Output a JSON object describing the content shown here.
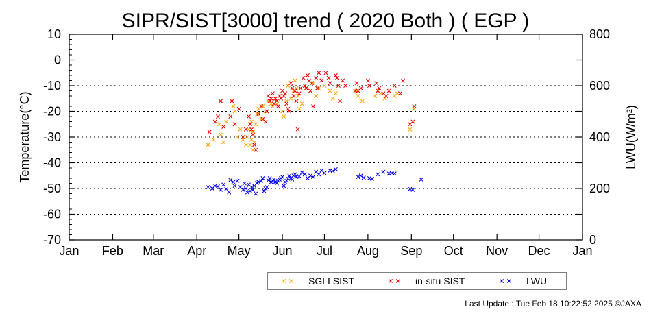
{
  "footer": {
    "last_update": "Last Update : Tue Feb 18 10:22:52 2025",
    "copyright": "©JAXA"
  },
  "chart_data": {
    "type": "scatter",
    "title": "SIPR/SIST[3000] trend ( 2020 Both ) ( EGP )",
    "ylabel": "Temperature(°C)",
    "y2label": "LWU(W/m²)",
    "ylim": [
      -70,
      10
    ],
    "yticks": [
      "10",
      "0",
      "-10",
      "-20",
      "-30",
      "-40",
      "-50",
      "-60",
      "-70"
    ],
    "y2lim": [
      0,
      800
    ],
    "y2ticks": [
      "800",
      "600",
      "400",
      "200",
      "0"
    ],
    "xticks": [
      "Jan",
      "Feb",
      "Mar",
      "Apr",
      "May",
      "Jun",
      "Jul",
      "Aug",
      "Sep",
      "Oct",
      "Nov",
      "Dec",
      "Jan"
    ],
    "x_unit": "day-of-year",
    "grid": "horizontal dotted",
    "legend_placement": "bottom",
    "series": [
      {
        "name": "SGLI SIST",
        "color": "#ffa500",
        "axis": "left",
        "x": [
          99,
          103,
          104,
          107,
          108,
          110,
          112,
          115,
          117,
          118,
          120,
          122,
          124,
          126,
          127,
          128,
          129,
          130,
          130,
          131,
          131,
          132,
          133,
          134,
          135,
          137,
          138,
          140,
          142,
          144,
          145,
          147,
          148,
          150,
          152,
          153,
          155,
          156,
          158,
          160,
          161,
          162,
          163,
          164,
          166,
          168,
          170,
          172,
          174,
          176,
          178,
          180,
          182,
          186,
          188,
          190,
          205,
          206,
          209,
          218,
          220,
          222,
          225,
          232,
          234,
          243,
          246
        ],
        "y": [
          -33,
          -31,
          -24,
          -25,
          -29,
          -32,
          -24,
          -22,
          -18,
          -20,
          -30,
          -27,
          -31,
          -33,
          -30,
          -27,
          -33,
          -31,
          -24,
          -28,
          -35,
          -32,
          -25,
          -21,
          -19,
          -23,
          -18,
          -20,
          -16,
          -17,
          -18,
          -15,
          -17,
          -14,
          -20,
          -22,
          -16,
          -10,
          -15,
          -12,
          -8,
          -11,
          -14,
          -19,
          -17,
          -10,
          -6,
          -12,
          -9,
          -14,
          -11,
          -8,
          -10,
          -12,
          -15,
          -13,
          -12,
          -14,
          -16,
          -14,
          -12,
          -13,
          -15,
          -14,
          -13,
          -27,
          -19
        ]
      },
      {
        "name": "in-situ SIST",
        "color": "#e60000",
        "axis": "left",
        "x": [
          100,
          104,
          106,
          108,
          110,
          115,
          116,
          118,
          121,
          124,
          126,
          128,
          129,
          130,
          131,
          132,
          133,
          135,
          137,
          138,
          140,
          141,
          142,
          143,
          144,
          145,
          146,
          147,
          148,
          149,
          150,
          151,
          152,
          153,
          154,
          155,
          156,
          157,
          158,
          159,
          160,
          161,
          162,
          163,
          164,
          165,
          167,
          168,
          169,
          170,
          171,
          172,
          173,
          174,
          176,
          177,
          178,
          180,
          183,
          185,
          186,
          190,
          191,
          192,
          193,
          195,
          197,
          204,
          205,
          206,
          208,
          213,
          214,
          219,
          220,
          221,
          224,
          226,
          228,
          232,
          236,
          238,
          243,
          245,
          246
        ],
        "y": [
          -28,
          -24,
          -22,
          -16,
          -26,
          -22,
          -16,
          -25,
          -19,
          -30,
          -27,
          -22,
          -25,
          -27,
          -29,
          -33,
          -35,
          -21,
          -18,
          -23,
          -24,
          -20,
          -14,
          -16,
          -15,
          -13,
          -17,
          -15,
          -16,
          -18,
          -14,
          -15,
          -12,
          -14,
          -13,
          -17,
          -19,
          -20,
          -9,
          -11,
          -14,
          -12,
          -16,
          -27,
          -13,
          -11,
          -7,
          -10,
          -11,
          -6,
          -8,
          -12,
          -9,
          -18,
          -7,
          -11,
          -5,
          -8,
          -5,
          -7,
          -9,
          -6,
          -7,
          -10,
          -16,
          -8,
          -10,
          -12,
          -9,
          -12,
          -11,
          -8,
          -10,
          -9,
          -12,
          -11,
          -13,
          -14,
          -12,
          -10,
          -13,
          -8,
          -25,
          -24,
          -18
        ]
      },
      {
        "name": "LWU",
        "color": "#0000e6",
        "axis": "right",
        "x": [
          99,
          102,
          104,
          106,
          108,
          110,
          112,
          114,
          115,
          117,
          118,
          120,
          122,
          124,
          125,
          126,
          127,
          128,
          129,
          130,
          131,
          132,
          133,
          134,
          135,
          137,
          138,
          139,
          140,
          141,
          142,
          143,
          144,
          145,
          146,
          147,
          148,
          149,
          150,
          151,
          152,
          153,
          154,
          155,
          156,
          157,
          158,
          159,
          160,
          161,
          162,
          164,
          166,
          168,
          170,
          172,
          174,
          176,
          178,
          180,
          182,
          186,
          188,
          190,
          206,
          208,
          210,
          214,
          216,
          220,
          224,
          228,
          230,
          232,
          243,
          245,
          251
        ],
        "y": [
          205,
          200,
          210,
          208,
          195,
          215,
          198,
          185,
          233,
          225,
          210,
          230,
          205,
          195,
          220,
          200,
          185,
          215,
          190,
          205,
          195,
          210,
          180,
          222,
          225,
          230,
          240,
          190,
          200,
          205,
          232,
          240,
          225,
          230,
          235,
          225,
          220,
          230,
          235,
          240,
          245,
          210,
          225,
          230,
          238,
          250,
          240,
          235,
          250,
          255,
          245,
          248,
          262,
          255,
          240,
          250,
          245,
          265,
          255,
          270,
          260,
          270,
          268,
          275,
          245,
          250,
          242,
          240,
          238,
          255,
          265,
          258,
          260,
          258,
          198,
          195,
          235
        ]
      }
    ]
  }
}
